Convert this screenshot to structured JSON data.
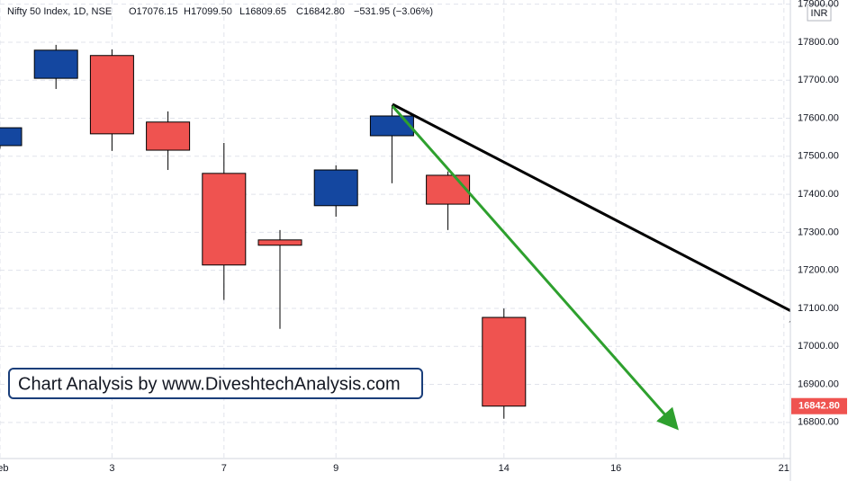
{
  "chart_data": {
    "type": "candlestick",
    "title": "Nifty 50 Index, 1D, NSE",
    "ohlc_text": [
      "O17076.15",
      "H17099.50",
      "L16809.65",
      "C16842.80"
    ],
    "change_text": "−531.95 (−3.06%)",
    "currency": "INR",
    "annotation": "Chart Analysis by www.DiveshtechAnalysis.com",
    "categories": [
      "Feb",
      null,
      "3",
      null,
      "7",
      null,
      "9",
      null,
      null,
      "14",
      null,
      "16",
      null,
      null,
      "21"
    ],
    "open": [
      17528,
      17705,
      17765,
      17590,
      17455,
      17280,
      17370,
      17554,
      17450,
      17076.15,
      null,
      null,
      null,
      null,
      null
    ],
    "high": [
      17576,
      17793,
      17781,
      17618,
      17535,
      17306,
      17476,
      17635,
      17460,
      17099.5,
      null,
      null,
      null,
      null,
      null
    ],
    "low": [
      17520,
      17677,
      17514,
      17464,
      17122,
      17046,
      17341,
      17429,
      17306,
      16809.65,
      null,
      null,
      null,
      null,
      null
    ],
    "close": [
      17575,
      17779,
      17559,
      17516,
      17214,
      17266,
      17464,
      17606,
      17374,
      16842.8,
      null,
      null,
      null,
      null,
      null
    ],
    "up_color": "#1447a0",
    "down_color": "#ef5350",
    "ylim": [
      16705,
      17911
    ],
    "yticks": [
      {
        "value": 16800,
        "label": "16800.00"
      },
      {
        "value": 16900,
        "label": "16900.00"
      },
      {
        "value": 17000,
        "label": "17000.00"
      },
      {
        "value": 17100,
        "label": "17100.00"
      },
      {
        "value": 17200,
        "label": "17200.00"
      },
      {
        "value": 17300,
        "label": "17300.00"
      },
      {
        "value": 17400,
        "label": "17400.00"
      },
      {
        "value": 17500,
        "label": "17500.00"
      },
      {
        "value": 17600,
        "label": "17600.00"
      },
      {
        "value": 17700,
        "label": "17700.00"
      },
      {
        "value": 17800,
        "label": "17800.00"
      },
      {
        "value": 17900,
        "label": "17900.00"
      }
    ],
    "last_price": {
      "value": 16842.8,
      "label": "16842.80"
    },
    "grid": true
  }
}
